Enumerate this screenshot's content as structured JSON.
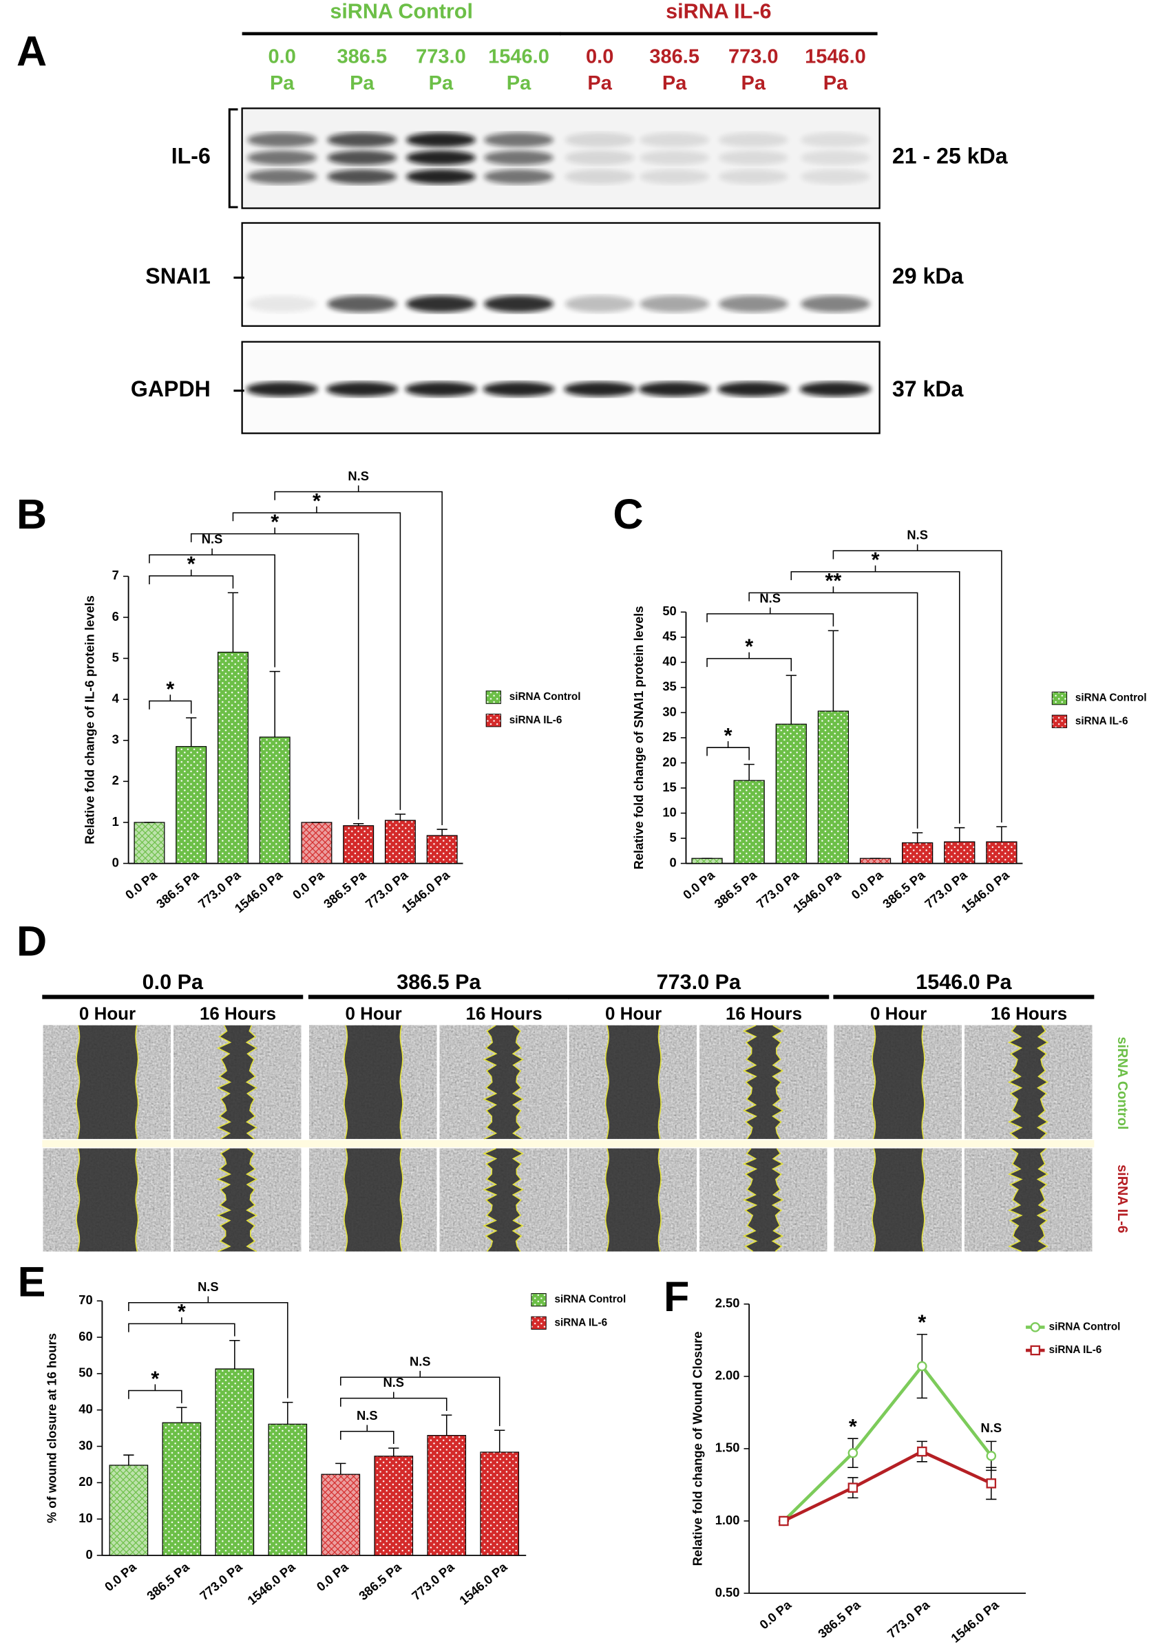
{
  "blot": {
    "panel": "A",
    "groups": [
      {
        "name": "siRNA Control",
        "color": "#6cbf47",
        "lanes": [
          {
            "pressure": "0.0",
            "unit": "Pa"
          },
          {
            "pressure": "386.5",
            "unit": "Pa"
          },
          {
            "pressure": "773.0",
            "unit": "Pa"
          },
          {
            "pressure": "1546.0",
            "unit": "Pa"
          }
        ]
      },
      {
        "name": "siRNA IL-6",
        "color": "#b51f24",
        "lanes": [
          {
            "pressure": "0.0",
            "unit": "Pa"
          },
          {
            "pressure": "386.5",
            "unit": "Pa"
          },
          {
            "pressure": "773.0",
            "unit": "Pa"
          },
          {
            "pressure": "1546.0",
            "unit": "Pa"
          }
        ]
      }
    ],
    "rows": [
      {
        "protein": "IL-6",
        "size": "21 - 25 kDa"
      },
      {
        "protein": "SNAI1",
        "size": "29 kDa"
      },
      {
        "protein": "GAPDH",
        "size": "37 kDa"
      }
    ]
  },
  "wound": {
    "panel": "D",
    "pressures": [
      "0.0 Pa",
      "386.5 Pa",
      "773.0 Pa",
      "1546.0 Pa"
    ],
    "times": [
      "0 Hour",
      "16 Hours"
    ],
    "rows": [
      {
        "name": "siRNA Control",
        "color": "#6cbf47"
      },
      {
        "name": "siRNA IL-6",
        "color": "#b51f24"
      }
    ]
  },
  "chart_data": [
    {
      "type": "bar",
      "panel": "B",
      "ylabel": "Relative fold change of IL-6 protein levels",
      "categories": [
        "0.0 Pa",
        "386.5 Pa",
        "773.0 Pa",
        "1546.0 Pa",
        "0.0 Pa",
        "386.5 Pa",
        "773.0 Pa",
        "1546.0 Pa"
      ],
      "series": [
        {
          "name": "siRNA Control",
          "color": "#6cbf47",
          "values": [
            1,
            2.85,
            5.15,
            3.08,
            null,
            null,
            null,
            null
          ],
          "errors": [
            0,
            0.7,
            1.45,
            1.6,
            null,
            null,
            null,
            null
          ]
        },
        {
          "name": "siRNA IL-6",
          "color": "#d42a2a",
          "values": [
            null,
            null,
            null,
            null,
            1,
            0.92,
            1.05,
            0.68
          ],
          "errors": [
            null,
            null,
            null,
            null,
            0,
            0.05,
            0.15,
            0.15
          ]
        }
      ],
      "ylim": [
        0,
        7
      ],
      "yticks": [
        0,
        1,
        2,
        3,
        4,
        5,
        6,
        7
      ],
      "annotations": [
        {
          "from": 0,
          "to": 1,
          "text": "*"
        },
        {
          "from": 0,
          "to": 2,
          "text": "*"
        },
        {
          "from": 0,
          "to": 3,
          "text": "N.S"
        },
        {
          "from": 1,
          "to": 5,
          "text": "*"
        },
        {
          "from": 2,
          "to": 6,
          "text": "*"
        },
        {
          "from": 3,
          "to": 7,
          "text": "N.S"
        }
      ]
    },
    {
      "type": "bar",
      "panel": "C",
      "ylabel": "Relative fold change of SNAI1 protein levels",
      "categories": [
        "0.0 Pa",
        "386.5 Pa",
        "773.0 Pa",
        "1546.0 Pa",
        "0.0 Pa",
        "386.5 Pa",
        "773.0 Pa",
        "1546.0 Pa"
      ],
      "series": [
        {
          "name": "siRNA Control",
          "color": "#6cbf47",
          "values": [
            1,
            16.5,
            27.7,
            30.3,
            null,
            null,
            null,
            null
          ],
          "errors": [
            0,
            3.2,
            9.7,
            16,
            null,
            null,
            null,
            null
          ]
        },
        {
          "name": "siRNA IL-6",
          "color": "#d42a2a",
          "values": [
            null,
            null,
            null,
            null,
            1,
            4.1,
            4.3,
            4.3
          ],
          "errors": [
            null,
            null,
            null,
            null,
            0,
            2,
            2.8,
            3
          ]
        }
      ],
      "ylim": [
        0,
        50
      ],
      "yticks": [
        0,
        5,
        10,
        15,
        20,
        25,
        30,
        35,
        40,
        45,
        50
      ],
      "annotations": [
        {
          "from": 0,
          "to": 1,
          "text": "*"
        },
        {
          "from": 0,
          "to": 2,
          "text": "*"
        },
        {
          "from": 0,
          "to": 3,
          "text": "N.S"
        },
        {
          "from": 1,
          "to": 5,
          "text": "**"
        },
        {
          "from": 2,
          "to": 6,
          "text": "*"
        },
        {
          "from": 3,
          "to": 7,
          "text": "N.S"
        }
      ]
    },
    {
      "type": "bar",
      "panel": "E",
      "ylabel": "% of wound closure at 16 hours",
      "categories": [
        "0.0 Pa",
        "386.5 Pa",
        "773.0 Pa",
        "1546.0 Pa",
        "0.0 Pa",
        "386.5 Pa",
        "773.0 Pa",
        "1546.0 Pa"
      ],
      "series": [
        {
          "name": "siRNA Control",
          "color": "#6cbf47",
          "values": [
            24.8,
            36.5,
            51.3,
            36.1,
            null,
            null,
            null,
            null
          ],
          "errors": [
            2.8,
            4.2,
            7.8,
            6,
            null,
            null,
            null,
            null
          ]
        },
        {
          "name": "siRNA IL-6",
          "color": "#d42a2a",
          "values": [
            null,
            null,
            null,
            null,
            22.3,
            27.3,
            33,
            28.4
          ],
          "errors": [
            null,
            null,
            null,
            null,
            3,
            2.2,
            5.6,
            6
          ]
        }
      ],
      "ylim": [
        0,
        70
      ],
      "yticks": [
        0,
        10,
        20,
        30,
        40,
        50,
        60,
        70
      ],
      "annotations": [
        {
          "from": 0,
          "to": 1,
          "text": "*"
        },
        {
          "from": 0,
          "to": 2,
          "text": "*"
        },
        {
          "from": 0,
          "to": 3,
          "text": "N.S"
        },
        {
          "from": 4,
          "to": 5,
          "text": "N.S"
        },
        {
          "from": 4,
          "to": 6,
          "text": "N.S"
        },
        {
          "from": 4,
          "to": 7,
          "text": "N.S"
        }
      ]
    },
    {
      "type": "line",
      "panel": "F",
      "ylabel": "Relative fold change of Wound Closure",
      "categories": [
        "0.0 Pa",
        "386.5 Pa",
        "773.0 Pa",
        "1546.0 Pa"
      ],
      "series": [
        {
          "name": "siRNA Control",
          "color": "#7ccb5a",
          "marker": "circle",
          "values": [
            1,
            1.47,
            2.07,
            1.45
          ],
          "errors": [
            0,
            0.1,
            0.22,
            0.1
          ]
        },
        {
          "name": "siRNA IL-6",
          "color": "#b51f24",
          "marker": "square",
          "values": [
            1,
            1.23,
            1.48,
            1.26
          ],
          "errors": [
            0,
            0.07,
            0.07,
            0.11
          ]
        }
      ],
      "ylim": [
        0.5,
        2.5
      ],
      "yticks": [
        {
          "value": 0.5,
          "label": "0.50"
        },
        {
          "value": 1,
          "label": "1.00"
        },
        {
          "value": 1.5,
          "label": "1.50"
        },
        {
          "value": 2,
          "label": "2.00"
        },
        {
          "value": 2.5,
          "label": "2.50"
        }
      ],
      "annotations": [
        {
          "at": 1,
          "text": "*"
        },
        {
          "at": 2,
          "text": "*"
        },
        {
          "at": 3,
          "text": "N.S"
        }
      ]
    }
  ]
}
